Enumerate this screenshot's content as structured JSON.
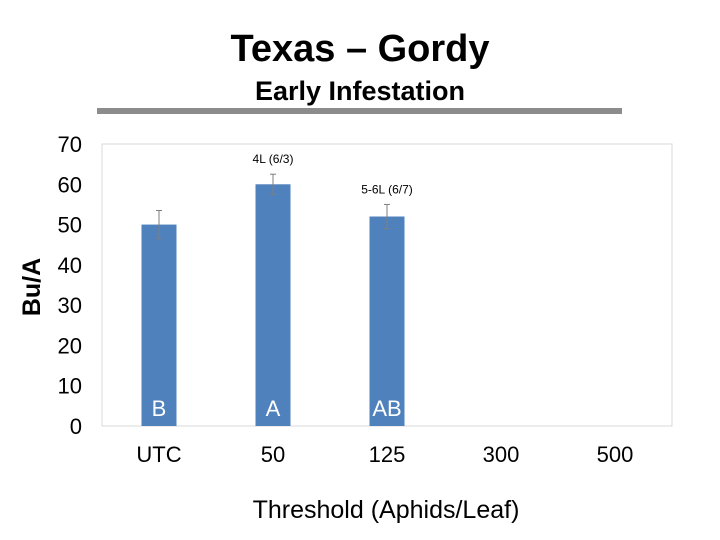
{
  "header": {
    "title": "Texas – Gordy",
    "subtitle": "Early Infestation"
  },
  "chart_data": {
    "type": "bar",
    "title": "Texas – Gordy",
    "subtitle": "Early Infestation",
    "xlabel": "Threshold (Aphids/Leaf)",
    "ylabel": "Bu/A",
    "ylim": [
      0,
      70
    ],
    "yticks": [
      0,
      10,
      20,
      30,
      40,
      50,
      60,
      70
    ],
    "categories": [
      "UTC",
      "50",
      "125",
      "300",
      "500"
    ],
    "values": [
      50,
      60,
      52,
      null,
      null
    ],
    "error": [
      3.5,
      2.5,
      3.0,
      null,
      null
    ],
    "letters": [
      "B",
      "A",
      "AB",
      "",
      ""
    ],
    "annotations": [
      "",
      "4L (6/3)",
      "5-6L (6/7)",
      "",
      ""
    ],
    "bar_color": "#4f81bd",
    "grid": false,
    "legend": "none"
  }
}
